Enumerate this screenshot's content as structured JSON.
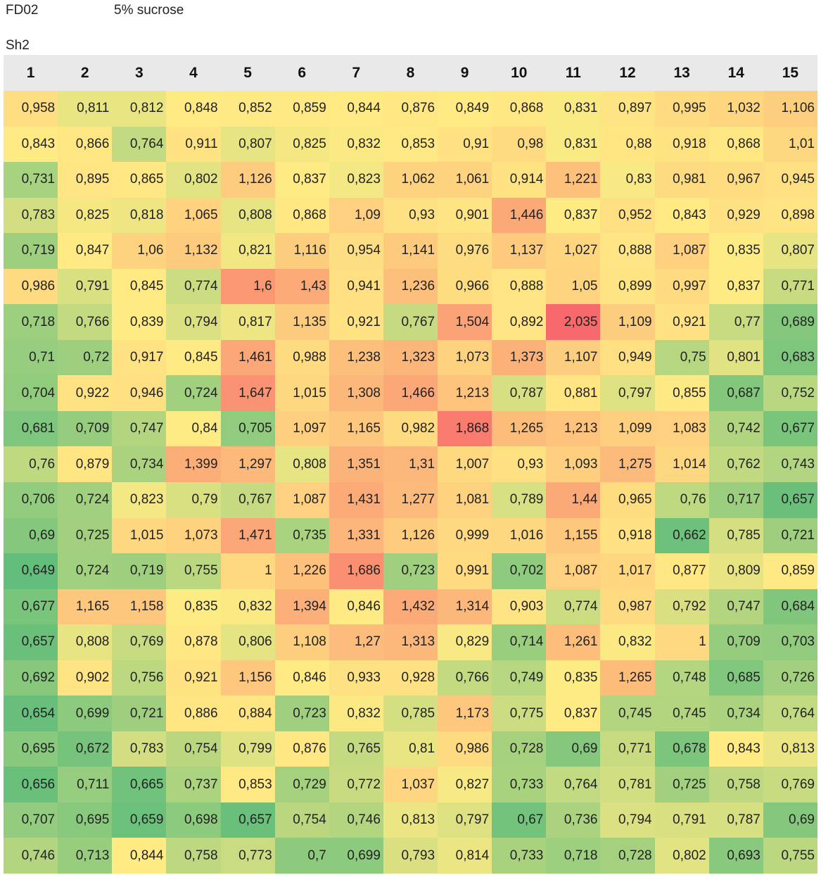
{
  "labels": {
    "plate": "FD02",
    "condition": "5% sucrose",
    "sheet": "Sh2"
  },
  "color_scale": {
    "low": "#63be7b",
    "mid": "#ffeb84",
    "high": "#f8696b"
  },
  "chart_data": {
    "type": "heatmap",
    "columns": [
      "1",
      "2",
      "3",
      "4",
      "5",
      "6",
      "7",
      "8",
      "9",
      "10",
      "11",
      "12",
      "13",
      "14",
      "15"
    ],
    "rows": [
      [
        "0,958",
        "0,811",
        "0,812",
        "0,848",
        "0,852",
        "0,859",
        "0,844",
        "0,876",
        "0,849",
        "0,868",
        "0,831",
        "0,897",
        "0,995",
        "1,032",
        "1,106"
      ],
      [
        "0,843",
        "0,866",
        "0,764",
        "0,911",
        "0,807",
        "0,825",
        "0,832",
        "0,853",
        "0,91",
        "0,98",
        "0,831",
        "0,88",
        "0,918",
        "0,868",
        "1,01"
      ],
      [
        "0,731",
        "0,895",
        "0,865",
        "0,802",
        "1,126",
        "0,837",
        "0,823",
        "1,062",
        "1,061",
        "0,914",
        "1,221",
        "0,83",
        "0,981",
        "0,967",
        "0,945"
      ],
      [
        "0,783",
        "0,825",
        "0,818",
        "1,065",
        "0,808",
        "0,868",
        "1,09",
        "0,93",
        "0,901",
        "1,446",
        "0,837",
        "0,952",
        "0,843",
        "0,929",
        "0,898"
      ],
      [
        "0,719",
        "0,847",
        "1,06",
        "1,132",
        "0,821",
        "1,116",
        "0,954",
        "1,141",
        "0,976",
        "1,137",
        "1,027",
        "0,888",
        "1,087",
        "0,835",
        "0,807"
      ],
      [
        "0,986",
        "0,791",
        "0,845",
        "0,774",
        "1,6",
        "1,43",
        "0,941",
        "1,236",
        "0,966",
        "0,888",
        "1,05",
        "0,899",
        "0,997",
        "0,837",
        "0,771"
      ],
      [
        "0,718",
        "0,766",
        "0,839",
        "0,794",
        "0,817",
        "1,135",
        "0,921",
        "0,767",
        "1,504",
        "0,892",
        "2,035",
        "1,109",
        "0,921",
        "0,77",
        "0,689"
      ],
      [
        "0,71",
        "0,72",
        "0,917",
        "0,845",
        "1,461",
        "0,988",
        "1,238",
        "1,323",
        "1,073",
        "1,373",
        "1,107",
        "0,949",
        "0,75",
        "0,801",
        "0,683"
      ],
      [
        "0,704",
        "0,922",
        "0,946",
        "0,724",
        "1,647",
        "1,015",
        "1,308",
        "1,466",
        "1,213",
        "0,787",
        "0,881",
        "0,797",
        "0,855",
        "0,687",
        "0,752"
      ],
      [
        "0,681",
        "0,709",
        "0,747",
        "0,84",
        "0,705",
        "1,097",
        "1,165",
        "0,982",
        "1,868",
        "1,265",
        "1,213",
        "1,099",
        "1,083",
        "0,742",
        "0,677"
      ],
      [
        "0,76",
        "0,879",
        "0,734",
        "1,399",
        "1,297",
        "0,808",
        "1,351",
        "1,31",
        "1,007",
        "0,93",
        "1,093",
        "1,275",
        "1,014",
        "0,762",
        "0,743"
      ],
      [
        "0,706",
        "0,724",
        "0,823",
        "0,79",
        "0,767",
        "1,087",
        "1,431",
        "1,277",
        "1,081",
        "0,789",
        "1,44",
        "0,965",
        "0,76",
        "0,717",
        "0,657"
      ],
      [
        "0,69",
        "0,725",
        "1,015",
        "1,073",
        "1,471",
        "0,735",
        "1,331",
        "1,126",
        "0,999",
        "1,016",
        "1,155",
        "0,918",
        "0,662",
        "0,785",
        "0,721"
      ],
      [
        "0,649",
        "0,724",
        "0,719",
        "0,755",
        "1",
        "1,226",
        "1,686",
        "0,723",
        "0,991",
        "0,702",
        "1,087",
        "1,017",
        "0,877",
        "0,809",
        "0,859"
      ],
      [
        "0,677",
        "1,165",
        "1,158",
        "0,835",
        "0,832",
        "1,394",
        "0,846",
        "1,432",
        "1,314",
        "0,903",
        "0,774",
        "0,987",
        "0,792",
        "0,747",
        "0,684"
      ],
      [
        "0,657",
        "0,808",
        "0,769",
        "0,878",
        "0,806",
        "1,108",
        "1,27",
        "1,313",
        "0,829",
        "0,714",
        "1,261",
        "0,832",
        "1",
        "0,709",
        "0,703"
      ],
      [
        "0,692",
        "0,902",
        "0,756",
        "0,921",
        "1,156",
        "0,846",
        "0,933",
        "0,928",
        "0,766",
        "0,749",
        "0,835",
        "1,265",
        "0,748",
        "0,685",
        "0,726"
      ],
      [
        "0,654",
        "0,699",
        "0,721",
        "0,886",
        "0,884",
        "0,723",
        "0,832",
        "0,785",
        "1,173",
        "0,775",
        "0,837",
        "0,745",
        "0,745",
        "0,734",
        "0,764"
      ],
      [
        "0,695",
        "0,672",
        "0,783",
        "0,754",
        "0,799",
        "0,876",
        "0,765",
        "0,81",
        "0,986",
        "0,728",
        "0,69",
        "0,771",
        "0,678",
        "0,843",
        "0,813"
      ],
      [
        "0,656",
        "0,711",
        "0,665",
        "0,737",
        "0,853",
        "0,729",
        "0,772",
        "1,037",
        "0,827",
        "0,733",
        "0,764",
        "0,781",
        "0,725",
        "0,758",
        "0,769"
      ],
      [
        "0,707",
        "0,695",
        "0,659",
        "0,698",
        "0,657",
        "0,754",
        "0,746",
        "0,813",
        "0,797",
        "0,67",
        "0,736",
        "0,794",
        "0,791",
        "0,787",
        "0,69"
      ],
      [
        "0,746",
        "0,713",
        "0,844",
        "0,758",
        "0,773",
        "0,7",
        "0,699",
        "0,793",
        "0,814",
        "0,733",
        "0,718",
        "0,728",
        "0,802",
        "0,693",
        "0,755"
      ]
    ]
  }
}
